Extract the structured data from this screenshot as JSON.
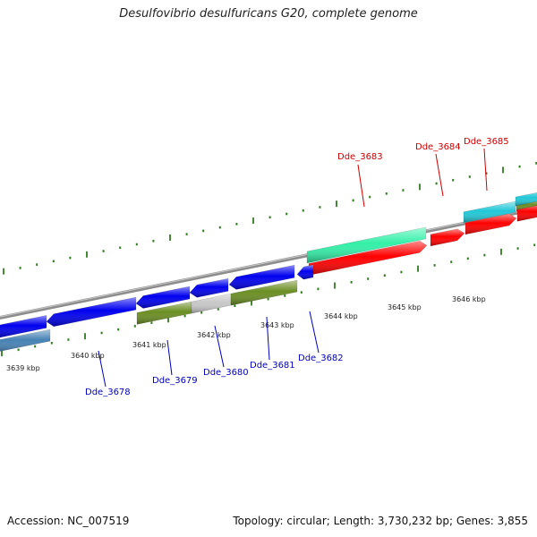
{
  "title": "Desulfovibrio desulfuricans G20, complete genome",
  "footer": {
    "accession": "Accession: NC_007519",
    "stats": "Topology: circular; Length: 3,730,232 bp; Genes: 3,855"
  },
  "colors": {
    "backbone": "#8c8c8c",
    "tick": "#2f7d1f",
    "forward_label": "#cc0000",
    "reverse_label": "#0000bb",
    "gene_red": "#ff0000",
    "gene_blue": "#0000ee",
    "gene_cyan": "#22c8d8",
    "gene_mint": "#33f0a8",
    "gene_olive": "#6b8e23",
    "gene_gray": "#c8c8c8",
    "gene_steel": "#4682b4"
  },
  "scale": {
    "kbp_labels": [
      "3639 kbp",
      "3640 kbp",
      "3641 kbp",
      "3642 kbp",
      "3643 kbp",
      "3644 kbp",
      "3645 kbp",
      "3646 kbp"
    ]
  },
  "gene_labels": {
    "forward": [
      "Dde_3683",
      "Dde_3684",
      "Dde_3685"
    ],
    "reverse": [
      "Dde_3678",
      "Dde_3679",
      "Dde_3680",
      "Dde_3681",
      "Dde_3682"
    ]
  }
}
